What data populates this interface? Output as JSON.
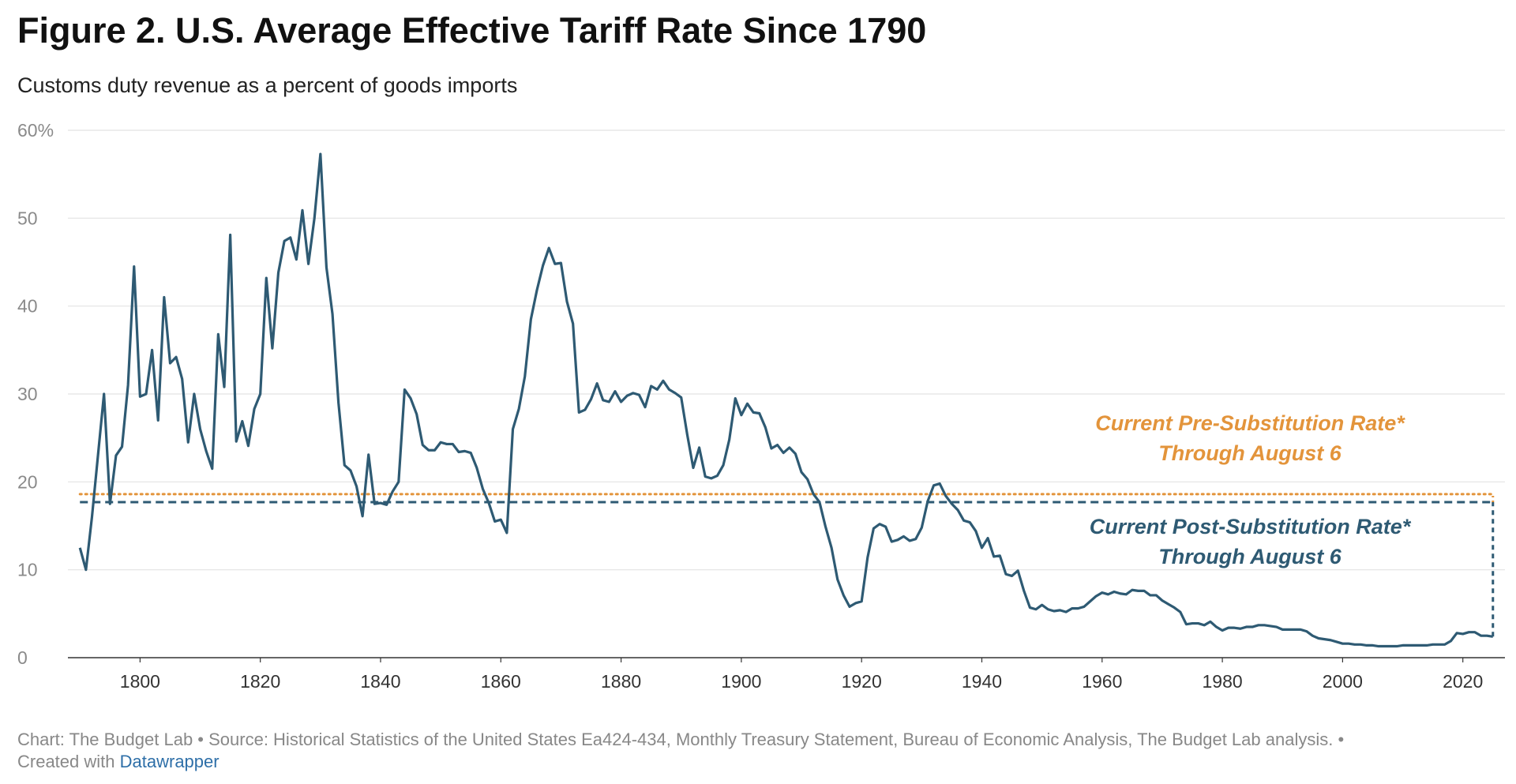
{
  "chart_data": {
    "type": "line",
    "title": "Figure 2. U.S. Average Effective Tariff Rate Since 1790",
    "subtitle": "Customs duty revenue as a percent of goods imports",
    "x": [
      1790,
      1791,
      1792,
      1793,
      1794,
      1795,
      1796,
      1797,
      1798,
      1799,
      1800,
      1801,
      1802,
      1803,
      1804,
      1805,
      1806,
      1807,
      1808,
      1809,
      1810,
      1811,
      1812,
      1813,
      1814,
      1815,
      1816,
      1817,
      1818,
      1819,
      1820,
      1821,
      1822,
      1823,
      1824,
      1825,
      1826,
      1827,
      1828,
      1829,
      1830,
      1831,
      1832,
      1833,
      1834,
      1835,
      1836,
      1837,
      1838,
      1839,
      1840,
      1841,
      1842,
      1843,
      1844,
      1845,
      1846,
      1847,
      1848,
      1849,
      1850,
      1851,
      1852,
      1853,
      1854,
      1855,
      1856,
      1857,
      1858,
      1859,
      1860,
      1861,
      1862,
      1863,
      1864,
      1865,
      1866,
      1867,
      1868,
      1869,
      1870,
      1871,
      1872,
      1873,
      1874,
      1875,
      1876,
      1877,
      1878,
      1879,
      1880,
      1881,
      1882,
      1883,
      1884,
      1885,
      1886,
      1887,
      1888,
      1889,
      1890,
      1891,
      1892,
      1893,
      1894,
      1895,
      1896,
      1897,
      1898,
      1899,
      1900,
      1901,
      1902,
      1903,
      1904,
      1905,
      1906,
      1907,
      1908,
      1909,
      1910,
      1911,
      1912,
      1913,
      1914,
      1915,
      1916,
      1917,
      1918,
      1919,
      1920,
      1921,
      1922,
      1923,
      1924,
      1925,
      1926,
      1927,
      1928,
      1929,
      1930,
      1931,
      1932,
      1933,
      1934,
      1935,
      1936,
      1937,
      1938,
      1939,
      1940,
      1941,
      1942,
      1943,
      1944,
      1945,
      1946,
      1947,
      1948,
      1949,
      1950,
      1951,
      1952,
      1953,
      1954,
      1955,
      1956,
      1957,
      1958,
      1959,
      1960,
      1961,
      1962,
      1963,
      1964,
      1965,
      1966,
      1967,
      1968,
      1969,
      1970,
      1971,
      1972,
      1973,
      1974,
      1975,
      1976,
      1977,
      1978,
      1979,
      1980,
      1981,
      1982,
      1983,
      1984,
      1985,
      1986,
      1987,
      1988,
      1989,
      1990,
      1991,
      1992,
      1993,
      1994,
      1995,
      1996,
      1997,
      1998,
      1999,
      2000,
      2001,
      2002,
      2003,
      2004,
      2005,
      2006,
      2007,
      2008,
      2009,
      2010,
      2011,
      2012,
      2013,
      2014,
      2015,
      2016,
      2017,
      2018,
      2019,
      2020,
      2021,
      2022,
      2023,
      2024,
      2025
    ],
    "series": [
      {
        "color": "#2e5a73",
        "values": [
          12.5,
          10,
          16,
          23,
          30,
          17.5,
          23,
          24,
          31,
          44.5,
          29.7,
          30,
          35,
          27,
          41,
          33.5,
          34.2,
          31.7,
          24.5,
          30,
          26,
          23.5,
          21.5,
          36.8,
          30.8,
          48.1,
          24.6,
          26.9,
          24.1,
          28.3,
          30,
          43.2,
          35.2,
          43.8,
          47.4,
          47.8,
          45.3,
          50.9,
          44.8,
          50,
          57.3,
          44.4,
          39.1,
          29,
          21.9,
          21.3,
          19.5,
          16.1,
          23.1,
          17.5,
          17.6,
          17.4,
          18.9,
          20,
          30.5,
          29.5,
          27.7,
          24.2,
          23.6,
          23.6,
          24.5,
          24.3,
          24.3,
          23.4,
          23.5,
          23.3,
          21.6,
          19.2,
          17.6,
          15.5,
          15.7,
          14.2,
          26,
          28.3,
          32,
          38.5,
          41.8,
          44.6,
          46.6,
          44.8,
          44.9,
          40.5,
          38,
          27.9,
          28.2,
          29.4,
          31.2,
          29.3,
          29.1,
          30.3,
          29.1,
          29.8,
          30.1,
          29.9,
          28.5,
          30.9,
          30.5,
          31.5,
          30.5,
          30.1,
          29.6,
          25.4,
          21.6,
          23.9,
          20.6,
          20.4,
          20.7,
          21.9,
          24.8,
          29.5,
          27.6,
          28.9,
          27.9,
          27.8,
          26.2,
          23.8,
          24.2,
          23.3,
          23.9,
          23.2,
          21.1,
          20.3,
          18.6,
          17.7,
          14.9,
          12.5,
          8.9,
          7.1,
          5.8,
          6.2,
          6.4,
          11.4,
          14.7,
          15.2,
          14.9,
          13.2,
          13.4,
          13.8,
          13.3,
          13.5,
          14.8,
          17.8,
          19.6,
          19.8,
          18.4,
          17.5,
          16.8,
          15.6,
          15.4,
          14.4,
          12.5,
          13.6,
          11.5,
          11.6,
          9.5,
          9.3,
          9.9,
          7.6,
          5.7,
          5.5,
          6,
          5.5,
          5.3,
          5.4,
          5.2,
          5.6,
          5.6,
          5.8,
          6.4,
          7,
          7.4,
          7.2,
          7.5,
          7.3,
          7.2,
          7.7,
          7.6,
          7.6,
          7.1,
          7.1,
          6.5,
          6.1,
          5.7,
          5.2,
          3.8,
          3.9,
          3.9,
          3.7,
          4.1,
          3.5,
          3.1,
          3.4,
          3.4,
          3.3,
          3.5,
          3.5,
          3.7,
          3.7,
          3.6,
          3.5,
          3.2,
          3.2,
          3.2,
          3.2,
          3,
          2.5,
          2.2,
          2.1,
          2,
          1.8,
          1.6,
          1.6,
          1.5,
          1.5,
          1.4,
          1.4,
          1.3,
          1.3,
          1.3,
          1.3,
          1.4,
          1.4,
          1.4,
          1.4,
          1.4,
          1.5,
          1.5,
          1.5,
          1.9,
          2.8,
          2.7,
          2.9,
          2.9,
          2.5,
          2.5,
          2.4
        ]
      }
    ],
    "reference_lines": [
      {
        "value": 18.6,
        "color": "#e3943b",
        "style": "dotted",
        "label": [
          "Current Pre-Substitution Rate*",
          "Through August 6"
        ]
      },
      {
        "value": 17.7,
        "color": "#2e5a73",
        "style": "dashed",
        "label": [
          "Current Post-Substitution Rate*",
          "Through August 6"
        ]
      }
    ],
    "xlim": [
      1788,
      2027
    ],
    "xticks": [
      1800,
      1820,
      1840,
      1860,
      1880,
      1900,
      1920,
      1940,
      1960,
      1980,
      2000,
      2020
    ],
    "ylim": [
      0,
      60
    ],
    "yticks": [
      0,
      10,
      20,
      30,
      40,
      50,
      {
        "value": 60,
        "label": "60%"
      }
    ],
    "grid": true,
    "footer": {
      "source": "Chart: The Budget Lab • Source: Historical Statistics of the United States Ea424-434, Monthly Treasury Statement, Bureau of Economic Analysis, The Budget Lab analysis. •",
      "created": "Created with",
      "link": "Datawrapper"
    }
  }
}
